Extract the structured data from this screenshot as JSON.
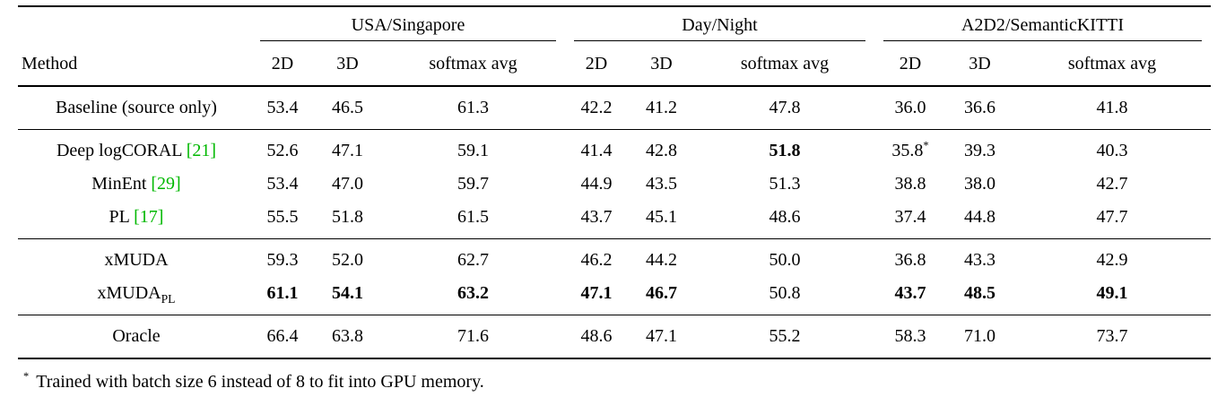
{
  "colors": {
    "citation_green": "#00b800",
    "rule_black": "#000000",
    "background": "#ffffff"
  },
  "table": {
    "method_header": "Method",
    "groups": [
      {
        "label": "USA/Singapore"
      },
      {
        "label": "Day/Night"
      },
      {
        "label": "A2D2/SemanticKITTI"
      }
    ],
    "sub_headers": [
      "2D",
      "3D",
      "softmax avg",
      "2D",
      "3D",
      "softmax avg",
      "2D",
      "3D",
      "softmax avg"
    ],
    "sections": [
      {
        "rows": [
          {
            "method": "Baseline (source only)",
            "cells": [
              {
                "v": "53.4"
              },
              {
                "v": "46.5"
              },
              {
                "v": "61.3"
              },
              {
                "v": "42.2"
              },
              {
                "v": "41.2"
              },
              {
                "v": "47.8"
              },
              {
                "v": "36.0"
              },
              {
                "v": "36.6"
              },
              {
                "v": "41.8"
              }
            ]
          }
        ]
      },
      {
        "rows": [
          {
            "method": "Deep logCORAL",
            "citation": "[21]",
            "cells": [
              {
                "v": "52.6"
              },
              {
                "v": "47.1"
              },
              {
                "v": "59.1"
              },
              {
                "v": "41.4"
              },
              {
                "v": "42.8"
              },
              {
                "v": "51.8",
                "bold": true
              },
              {
                "v": "35.8",
                "sup": "*"
              },
              {
                "v": "39.3"
              },
              {
                "v": "40.3"
              }
            ]
          },
          {
            "method": "MinEnt",
            "citation": "[29]",
            "cells": [
              {
                "v": "53.4"
              },
              {
                "v": "47.0"
              },
              {
                "v": "59.7"
              },
              {
                "v": "44.9"
              },
              {
                "v": "43.5"
              },
              {
                "v": "51.3"
              },
              {
                "v": "38.8"
              },
              {
                "v": "38.0"
              },
              {
                "v": "42.7"
              }
            ]
          },
          {
            "method": "PL",
            "citation": "[17]",
            "cells": [
              {
                "v": "55.5"
              },
              {
                "v": "51.8"
              },
              {
                "v": "61.5"
              },
              {
                "v": "43.7"
              },
              {
                "v": "45.1"
              },
              {
                "v": "48.6"
              },
              {
                "v": "37.4"
              },
              {
                "v": "44.8"
              },
              {
                "v": "47.7"
              }
            ]
          }
        ]
      },
      {
        "rows": [
          {
            "method": "xMUDA",
            "cells": [
              {
                "v": "59.3"
              },
              {
                "v": "52.0"
              },
              {
                "v": "62.7"
              },
              {
                "v": "46.2"
              },
              {
                "v": "44.2"
              },
              {
                "v": "50.0"
              },
              {
                "v": "36.8"
              },
              {
                "v": "43.3"
              },
              {
                "v": "42.9"
              }
            ]
          },
          {
            "method": "xMUDA",
            "subscript": "PL",
            "cells": [
              {
                "v": "61.1",
                "bold": true
              },
              {
                "v": "54.1",
                "bold": true
              },
              {
                "v": "63.2",
                "bold": true
              },
              {
                "v": "47.1",
                "bold": true
              },
              {
                "v": "46.7",
                "bold": true
              },
              {
                "v": "50.8"
              },
              {
                "v": "43.7",
                "bold": true
              },
              {
                "v": "48.5",
                "bold": true
              },
              {
                "v": "49.1",
                "bold": true
              }
            ]
          }
        ]
      },
      {
        "rows": [
          {
            "method": "Oracle",
            "cells": [
              {
                "v": "66.4"
              },
              {
                "v": "63.8"
              },
              {
                "v": "71.6"
              },
              {
                "v": "48.6"
              },
              {
                "v": "47.1"
              },
              {
                "v": "55.2"
              },
              {
                "v": "58.3"
              },
              {
                "v": "71.0"
              },
              {
                "v": "73.7"
              }
            ]
          }
        ]
      }
    ],
    "footnote": {
      "marker": "*",
      "text": "Trained with batch size 6 instead of 8 to fit into GPU memory."
    }
  }
}
